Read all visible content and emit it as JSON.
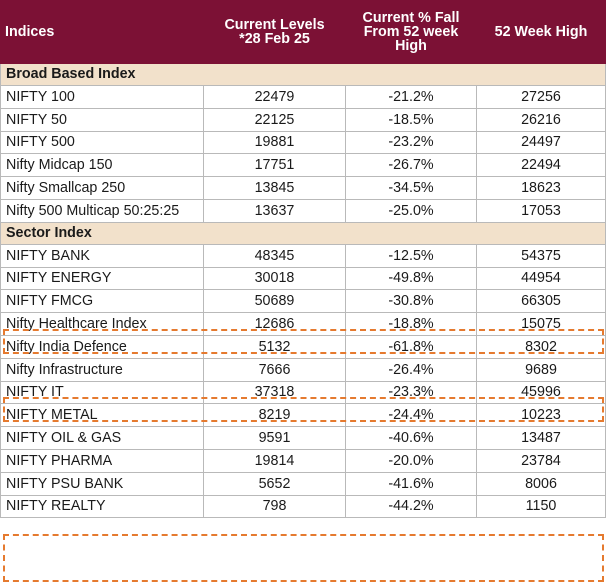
{
  "header": {
    "col1": "Indices",
    "col2_line1": "Current Levels",
    "col2_line2": "*28 Feb 25",
    "col3_line1": "Current % Fall",
    "col3_line2": "From 52 week",
    "col3_line3": "High",
    "col4": "52 Week High"
  },
  "sections": [
    {
      "title": "Broad Based Index",
      "rows": [
        {
          "name": "NIFTY 100",
          "level": "22479",
          "fall": "-21.2%",
          "high": "27256"
        },
        {
          "name": "NIFTY 50",
          "level": "22125",
          "fall": "-18.5%",
          "high": "26216"
        },
        {
          "name": "NIFTY 500",
          "level": "19881",
          "fall": "-23.2%",
          "high": "24497"
        },
        {
          "name": "Nifty Midcap 150",
          "level": "17751",
          "fall": "-26.7%",
          "high": "22494"
        },
        {
          "name": "Nifty Smallcap 250",
          "level": "13845",
          "fall": "-34.5%",
          "high": "18623"
        },
        {
          "name": "Nifty 500 Multicap 50:25:25",
          "level": "13637",
          "fall": "-25.0%",
          "high": "17053"
        }
      ]
    },
    {
      "title": "Sector Index",
      "rows": [
        {
          "name": "NIFTY BANK",
          "level": "48345",
          "fall": "-12.5%",
          "high": "54375"
        },
        {
          "name": "NIFTY ENERGY",
          "level": "30018",
          "fall": "-49.8%",
          "high": "44954"
        },
        {
          "name": "NIFTY FMCG",
          "level": "50689",
          "fall": "-30.8%",
          "high": "66305"
        },
        {
          "name": "Nifty Healthcare Index",
          "level": "12686",
          "fall": "-18.8%",
          "high": "15075"
        },
        {
          "name": "Nifty India Defence",
          "level": "5132",
          "fall": "-61.8%",
          "high": "8302"
        },
        {
          "name": "Nifty Infrastructure",
          "level": "7666",
          "fall": "-26.4%",
          "high": "9689"
        },
        {
          "name": "NIFTY IT",
          "level": "37318",
          "fall": "-23.3%",
          "high": "45996"
        },
        {
          "name": "NIFTY METAL",
          "level": "8219",
          "fall": "-24.4%",
          "high": "10223"
        },
        {
          "name": "NIFTY OIL & GAS",
          "level": "9591",
          "fall": "-40.6%",
          "high": "13487"
        },
        {
          "name": "NIFTY PHARMA",
          "level": "19814",
          "fall": "-20.0%",
          "high": "23784"
        },
        {
          "name": "NIFTY PSU BANK",
          "level": "5652",
          "fall": "-41.6%",
          "high": "8006"
        },
        {
          "name": "NIFTY REALTY",
          "level": "798",
          "fall": "-44.2%",
          "high": "1150"
        }
      ]
    }
  ],
  "highlight_color": "#e57a2f"
}
